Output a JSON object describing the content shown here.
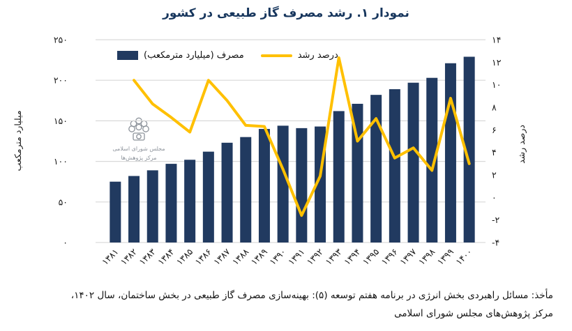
{
  "colors": {
    "bar": "#213A60",
    "line": "#FFC000",
    "title": "#17365D",
    "grid": "#D9D9D9",
    "axis_text": "#1A1A1A",
    "watermark": "#8D939B"
  },
  "watermark": {
    "line1": "مجلس شورای اسلامی",
    "line2": "مرکز پژوهش‌ها"
  },
  "source": {
    "line1": "مأخذ: مسائل راهبردی بخش انرژی در برنامه هفتم توسعه (۵): بهینه‌سازی مصرف گاز طبیعی در بخش ساختمان، سال ۱۴۰۲،",
    "line2": "مرکز پژوهش‌های مجلس شورای اسلامی"
  },
  "chart_data": {
    "type": "bar",
    "title": "نمودار ۱. رشد مصرف گاز طبیعی در کشور",
    "categories": [
      "۱۳۸۱",
      "۱۳۸۲",
      "۱۳۸۳",
      "۱۳۸۴",
      "۱۳۸۵",
      "۱۳۸۶",
      "۱۳۸۷",
      "۱۳۸۸",
      "۱۳۸۹",
      "۱۳۹۰",
      "۱۳۹۱",
      "۱۳۹۲",
      "۱۳۹۳",
      "۱۳۹۴",
      "۱۳۹۵",
      "۱۳۹۶",
      "۱۳۹۷",
      "۱۳۹۸",
      "۱۳۹۹",
      "۱۴۰۰"
    ],
    "series": [
      {
        "name": "مصرف (میلیارد مترمکعب)",
        "type": "bar",
        "axis": "left",
        "values": [
          75,
          82,
          89,
          97,
          102,
          112,
          123,
          130,
          140,
          144,
          141,
          143,
          162,
          171,
          182,
          189,
          197,
          203,
          221,
          229
        ]
      },
      {
        "name": "درصد رشد",
        "type": "line",
        "axis": "right",
        "values": [
          null,
          10.4,
          8.3,
          7.1,
          5.8,
          10.4,
          8.6,
          6.4,
          6.3,
          2.5,
          -1.6,
          1.9,
          12.4,
          5.0,
          7.0,
          3.5,
          4.4,
          2.4,
          8.8,
          3.0
        ]
      }
    ],
    "left_axis": {
      "label": "میلیارد مترمکعب",
      "min": 0,
      "max": 250,
      "tick_values": [
        0,
        50,
        100,
        150,
        200,
        250
      ],
      "tick_labels": [
        "۰",
        "۵۰",
        "۱۰۰",
        "۱۵۰",
        "۲۰۰",
        "۲۵۰"
      ]
    },
    "right_axis": {
      "label": "درصد رشد",
      "min": -4,
      "max": 14,
      "tick_values": [
        -4,
        -2,
        0,
        2,
        4,
        6,
        8,
        10,
        12,
        14
      ],
      "tick_labels": [
        "-۴",
        "-۲",
        "۰",
        "۲",
        "۴",
        "۶",
        "۸",
        "۱۰",
        "۱۲",
        "۱۴"
      ]
    },
    "grid": true,
    "legend_position": "top"
  }
}
